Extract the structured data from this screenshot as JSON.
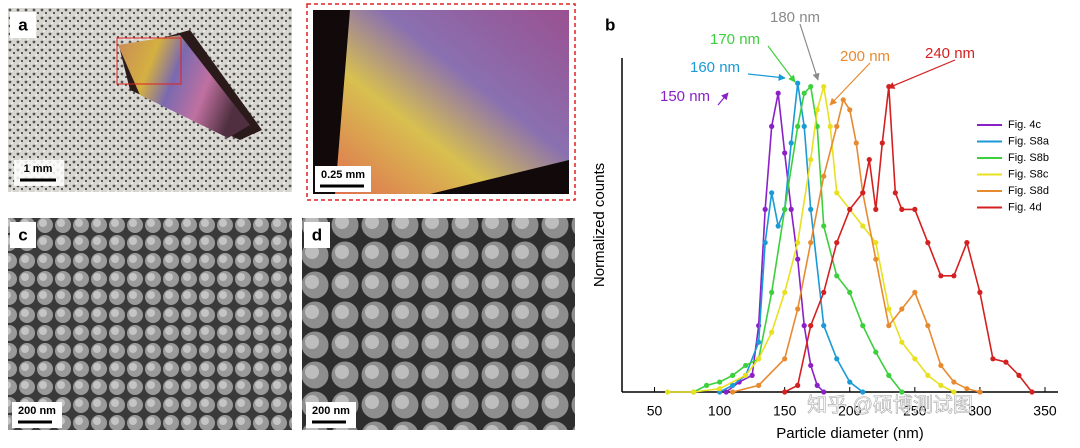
{
  "panels": {
    "a": {
      "label": "a",
      "scale_bar": "1 mm"
    },
    "inset": {
      "scale_bar": "0.25 mm"
    },
    "b": {
      "label": "b"
    },
    "c": {
      "label": "c",
      "scale_bar": "200 nm"
    },
    "d": {
      "label": "d",
      "scale_bar": "200 nm"
    }
  },
  "watermark": "知乎 @硕博测试图",
  "chart_data": {
    "type": "line",
    "x_label": "Particle diameter (nm)",
    "y_label": "Normalized counts",
    "xlim": [
      25,
      360
    ],
    "ylim": [
      0,
      1
    ],
    "xticks": [
      50,
      100,
      150,
      200,
      250,
      300,
      350
    ],
    "legend": "right",
    "annotations": [
      {
        "text": "150 nm",
        "color": "#8b1fc8"
      },
      {
        "text": "160 nm",
        "color": "#1a9ad6"
      },
      {
        "text": "170 nm",
        "color": "#3cd03c"
      },
      {
        "text": "180 nm",
        "color": "#8a8a8a"
      },
      {
        "text": "200 nm",
        "color": "#e88a30"
      },
      {
        "text": "240 nm",
        "color": "#d42020"
      }
    ],
    "series": [
      {
        "name": "Fig. 4c",
        "color": "#8b1fc8",
        "x": [
          105,
          115,
          125,
          130,
          135,
          140,
          145,
          150,
          155,
          160,
          165,
          170,
          175,
          180
        ],
        "values": [
          0,
          0.03,
          0.05,
          0.2,
          0.55,
          0.8,
          0.9,
          0.72,
          0.55,
          0.4,
          0.2,
          0.08,
          0.02,
          0
        ]
      },
      {
        "name": "Fig. S8a",
        "color": "#1a9ad6",
        "x": [
          100,
          110,
          120,
          130,
          135,
          140,
          145,
          150,
          155,
          160,
          165,
          170,
          180,
          190,
          200,
          210
        ],
        "values": [
          0,
          0.02,
          0.05,
          0.15,
          0.45,
          0.6,
          0.5,
          0.55,
          0.75,
          0.93,
          0.8,
          0.55,
          0.2,
          0.1,
          0.03,
          0
        ]
      },
      {
        "name": "Fig. S8b",
        "color": "#3cd03c",
        "x": [
          80,
          90,
          100,
          110,
          120,
          130,
          140,
          150,
          160,
          165,
          170,
          175,
          180,
          190,
          200,
          210,
          220,
          230,
          240
        ],
        "values": [
          0,
          0.02,
          0.03,
          0.05,
          0.08,
          0.1,
          0.3,
          0.55,
          0.8,
          0.9,
          0.92,
          0.8,
          0.5,
          0.35,
          0.3,
          0.2,
          0.12,
          0.05,
          0
        ]
      },
      {
        "name": "Fig. S8c",
        "color": "#e8e020",
        "x": [
          60,
          80,
          100,
          120,
          130,
          140,
          150,
          160,
          170,
          175,
          180,
          185,
          190,
          200,
          210,
          220,
          230,
          240,
          250,
          260,
          270,
          280
        ],
        "values": [
          0,
          0,
          0.01,
          0.05,
          0.1,
          0.18,
          0.3,
          0.45,
          0.7,
          0.85,
          0.92,
          0.8,
          0.6,
          0.55,
          0.5,
          0.45,
          0.25,
          0.15,
          0.1,
          0.05,
          0.02,
          0
        ]
      },
      {
        "name": "Fig. S8d",
        "color": "#e88a30",
        "x": [
          110,
          130,
          150,
          160,
          170,
          180,
          190,
          195,
          200,
          205,
          210,
          220,
          230,
          240,
          250,
          260,
          270,
          280,
          290,
          300
        ],
        "values": [
          0,
          0.02,
          0.1,
          0.25,
          0.45,
          0.65,
          0.8,
          0.88,
          0.85,
          0.75,
          0.6,
          0.4,
          0.2,
          0.25,
          0.3,
          0.2,
          0.08,
          0.03,
          0.01,
          0
        ]
      },
      {
        "name": "Fig. 4d",
        "color": "#d42020",
        "x": [
          150,
          160,
          170,
          180,
          190,
          200,
          210,
          215,
          220,
          225,
          230,
          235,
          240,
          250,
          260,
          270,
          280,
          290,
          300,
          310,
          320,
          330,
          340
        ],
        "values": [
          0,
          0.02,
          0.2,
          0.3,
          0.45,
          0.55,
          0.6,
          0.7,
          0.55,
          0.75,
          0.92,
          0.6,
          0.55,
          0.55,
          0.45,
          0.35,
          0.35,
          0.45,
          0.3,
          0.1,
          0.09,
          0.05,
          0
        ]
      }
    ]
  }
}
